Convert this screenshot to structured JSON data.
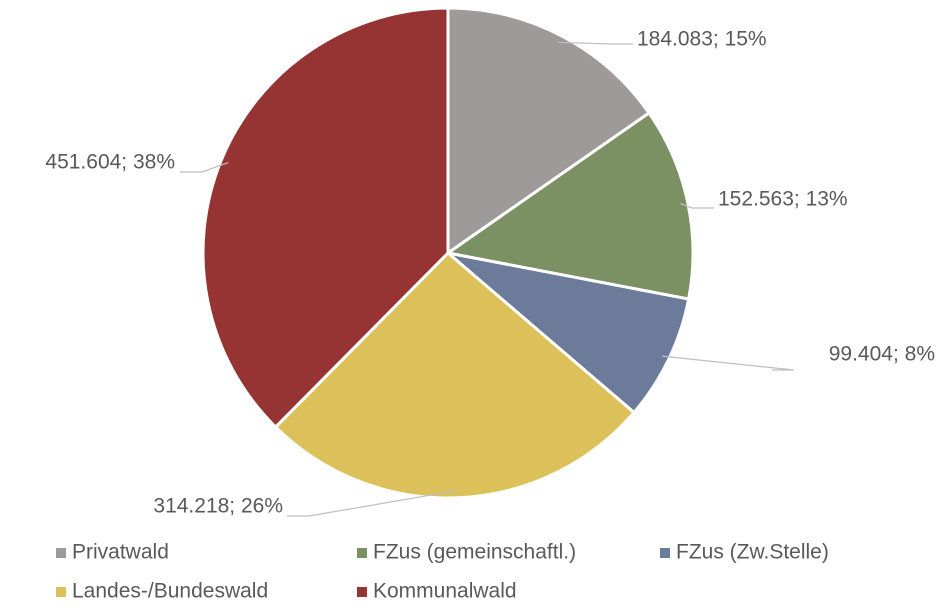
{
  "chart_data": {
    "type": "pie",
    "categories": [
      "Privatwald",
      "FZus (gemeinschaftl.)",
      "FZus (Zw.Stelle)",
      "Landes-/Bundeswald",
      "Kommunalwald"
    ],
    "values": [
      184083,
      152563,
      99404,
      314218,
      451604
    ],
    "value_labels": [
      "184.083; 15%",
      "152.563; 13%",
      "99.404; 8%",
      "314.218; 26%",
      "451.604; 38%"
    ],
    "colors": [
      "#9e9a9a",
      "#7b9164",
      "#6b7b99",
      "#dcc15a",
      "#963434"
    ],
    "legend": "bottom"
  }
}
